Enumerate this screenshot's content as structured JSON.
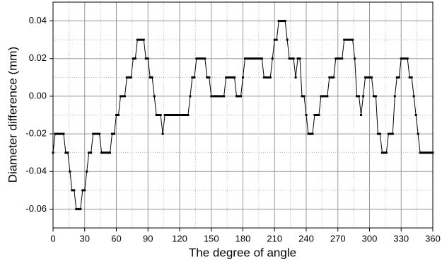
{
  "chart_data": {
    "type": "line",
    "xlabel": "The degree  of angle",
    "ylabel": "Diameter difference (mm)",
    "xlim": [
      0,
      360
    ],
    "ylim": [
      -0.07,
      0.05
    ],
    "xticks": [
      0,
      30,
      60,
      90,
      120,
      150,
      180,
      210,
      240,
      270,
      300,
      330,
      360
    ],
    "yticks": [
      -0.06,
      -0.04,
      -0.02,
      {
        "value": 0,
        "label": "0.00"
      },
      0.02,
      0.04
    ],
    "xminorticks": [
      15,
      45,
      75,
      105,
      135,
      165,
      195,
      225,
      255,
      285,
      315,
      345
    ],
    "yminorticks": [
      -0.07,
      -0.05,
      -0.03,
      -0.01,
      0.01,
      0.03,
      0.05
    ],
    "grid": true,
    "series": [
      {
        "color": "#000000",
        "x": [
          0,
          2,
          4,
          6,
          8,
          10,
          12,
          14,
          16,
          18,
          20,
          22,
          24,
          26,
          28,
          30,
          32,
          34,
          36,
          38,
          40,
          42,
          44,
          46,
          48,
          50,
          52,
          54,
          56,
          58,
          60,
          62,
          64,
          66,
          68,
          70,
          72,
          74,
          76,
          78,
          80,
          82,
          84,
          86,
          88,
          90,
          92,
          94,
          96,
          98,
          100,
          102,
          104,
          106,
          108,
          110,
          112,
          114,
          116,
          118,
          120,
          122,
          124,
          126,
          128,
          130,
          132,
          134,
          136,
          138,
          140,
          142,
          144,
          146,
          148,
          150,
          152,
          154,
          156,
          158,
          160,
          162,
          164,
          166,
          168,
          170,
          172,
          174,
          176,
          178,
          180,
          182,
          184,
          186,
          188,
          190,
          192,
          194,
          196,
          198,
          200,
          202,
          204,
          206,
          208,
          210,
          212,
          214,
          216,
          218,
          220,
          222,
          224,
          226,
          228,
          230,
          232,
          234,
          236,
          238,
          240,
          242,
          244,
          246,
          248,
          250,
          252,
          254,
          256,
          258,
          260,
          262,
          264,
          266,
          268,
          270,
          272,
          274,
          276,
          278,
          280,
          282,
          284,
          286,
          288,
          290,
          292,
          294,
          296,
          298,
          300,
          302,
          304,
          306,
          308,
          310,
          312,
          314,
          316,
          318,
          320,
          322,
          324,
          326,
          328,
          330,
          332,
          334,
          336,
          338,
          340,
          342,
          344,
          346,
          348,
          350,
          352,
          354,
          356,
          358,
          360
        ],
        "values": [
          -0.03,
          -0.02,
          -0.02,
          -0.02,
          -0.02,
          -0.02,
          -0.03,
          -0.03,
          -0.04,
          -0.05,
          -0.05,
          -0.06,
          -0.06,
          -0.06,
          -0.05,
          -0.05,
          -0.04,
          -0.03,
          -0.03,
          -0.02,
          -0.02,
          -0.02,
          -0.02,
          -0.03,
          -0.03,
          -0.03,
          -0.03,
          -0.03,
          -0.02,
          -0.02,
          -0.01,
          -0.01,
          0,
          0,
          0,
          0.01,
          0.01,
          0.01,
          0.02,
          0.02,
          0.03,
          0.03,
          0.03,
          0.03,
          0.02,
          0.02,
          0.01,
          0.01,
          0,
          -0.01,
          -0.01,
          -0.01,
          -0.02,
          -0.01,
          -0.01,
          -0.01,
          -0.01,
          -0.01,
          -0.01,
          -0.01,
          -0.01,
          -0.01,
          -0.01,
          -0.01,
          -0.01,
          0,
          0.01,
          0.01,
          0.02,
          0.02,
          0.02,
          0.02,
          0.02,
          0.01,
          0.01,
          0,
          0,
          0,
          0,
          0,
          0,
          0,
          0.01,
          0.01,
          0.01,
          0.01,
          0.01,
          0,
          0,
          0,
          0.01,
          0.02,
          0.02,
          0.02,
          0.02,
          0.02,
          0.02,
          0.02,
          0.02,
          0.02,
          0.01,
          0.01,
          0.01,
          0.01,
          0.02,
          0.03,
          0.03,
          0.04,
          0.04,
          0.04,
          0.04,
          0.03,
          0.02,
          0.02,
          0.02,
          0.01,
          0.02,
          0.02,
          0,
          0,
          -0.01,
          -0.02,
          -0.02,
          -0.02,
          -0.01,
          -0.01,
          -0.01,
          0,
          0,
          0,
          0,
          0.01,
          0.01,
          0.01,
          0.02,
          0.02,
          0.02,
          0.02,
          0.03,
          0.03,
          0.03,
          0.03,
          0.03,
          0.02,
          0,
          0,
          -0.01,
          0,
          0.01,
          0.01,
          0.01,
          0.01,
          0,
          0,
          -0.02,
          -0.02,
          -0.03,
          -0.03,
          -0.03,
          -0.02,
          -0.02,
          -0.02,
          0,
          0.01,
          0.01,
          0.02,
          0.02,
          0.02,
          0.02,
          0.01,
          0.01,
          0,
          -0.01,
          -0.02,
          -0.03,
          -0.03,
          -0.03,
          -0.03,
          -0.03,
          -0.03,
          -0.03
        ]
      }
    ]
  }
}
